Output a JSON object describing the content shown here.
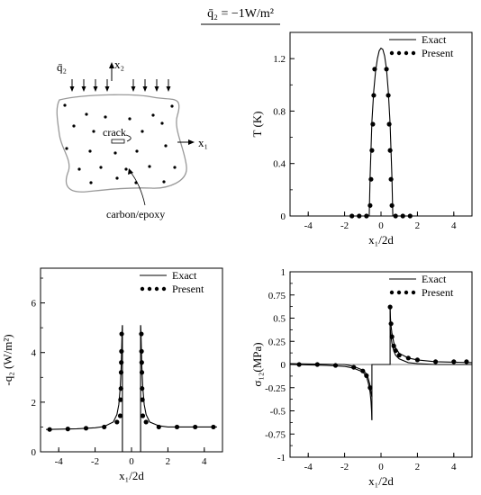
{
  "header": {
    "label": "q̄₂ = −1W/m²"
  },
  "schematic": {
    "q_label": "q̄₂",
    "x2_label": "x₂",
    "x1_label": "x₁",
    "crack_label": "crack",
    "material_label": "carbon/epoxy"
  },
  "chart_data": [
    {
      "type": "line",
      "xlabel": "x₁/2d",
      "ylabel": "T (K)",
      "xlim": [
        -5,
        5
      ],
      "ylim": [
        0,
        1.4
      ],
      "xticks": [
        -4,
        -2,
        0,
        2,
        4
      ],
      "yticks": [
        0,
        0.4,
        0.8,
        1.2
      ],
      "ytick_labels": [
        "0",
        "0.4",
        "0.8",
        "1.2"
      ],
      "legend": "top-right",
      "series": [
        {
          "name": "Exact",
          "style": "line",
          "x": [
            -0.65,
            -0.6,
            -0.5,
            -0.4,
            -0.3,
            -0.2,
            -0.1,
            0,
            0.1,
            0.2,
            0.3,
            0.4,
            0.5,
            0.6,
            0.65
          ],
          "y": [
            0,
            0.3,
            0.72,
            0.95,
            1.1,
            1.2,
            1.26,
            1.28,
            1.27,
            1.22,
            1.12,
            0.95,
            0.7,
            0.3,
            0
          ]
        },
        {
          "name": "Present",
          "style": "markers",
          "x": [
            -1.6,
            -1.2,
            -0.8,
            -0.6,
            -0.55,
            -0.5,
            -0.45,
            -0.4,
            -0.35,
            0.3,
            0.4,
            0.45,
            0.5,
            0.55,
            0.6,
            0.8,
            1.2,
            1.6
          ],
          "y": [
            0,
            0,
            0,
            0.08,
            0.28,
            0.5,
            0.7,
            0.92,
            1.12,
            1.12,
            0.92,
            0.7,
            0.5,
            0.28,
            0.08,
            0,
            0,
            0
          ]
        }
      ]
    },
    {
      "type": "line",
      "xlabel": "x₁/2d",
      "ylabel": "-q₂ (W/m²)",
      "xlim": [
        -5,
        5
      ],
      "ylim": [
        0,
        7.4
      ],
      "xticks": [
        -4,
        -2,
        0,
        2,
        4
      ],
      "yticks": [
        0,
        2,
        4,
        6
      ],
      "ytick_labels": [
        "0",
        "2",
        "4",
        "6"
      ],
      "legend": "top-right",
      "series": [
        {
          "name": "Exact",
          "style": "line",
          "segments": [
            {
              "x": [
                -4.7,
                -3,
                -2,
                -1.5,
                -1,
                -0.8,
                -0.7,
                -0.62,
                -0.57,
                -0.54,
                -0.52,
                -0.5
              ],
              "y": [
                0.9,
                0.93,
                0.97,
                1.02,
                1.2,
                1.5,
                1.9,
                2.6,
                3.4,
                4.2,
                4.8,
                5.1
              ]
            },
            {
              "x": [
                -0.5,
                -0.5,
                -0.5
              ],
              "y": [
                5.1,
                0,
                0
              ]
            },
            {
              "x": [
                0.5,
                0.5,
                0.5
              ],
              "y": [
                0,
                5.1,
                5.1
              ]
            },
            {
              "x": [
                0.5,
                0.52,
                0.54,
                0.57,
                0.62,
                0.7,
                0.8,
                1,
                1.5,
                2,
                3,
                4.7
              ],
              "y": [
                5.1,
                4.8,
                4.2,
                3.4,
                2.6,
                1.9,
                1.5,
                1.2,
                1.05,
                1.0,
                1.0,
                1.0
              ]
            }
          ]
        },
        {
          "name": "Present",
          "style": "markers",
          "x": [
            -4.5,
            -3.5,
            -2.5,
            -1.5,
            -0.8,
            -0.62,
            -0.6,
            -0.58,
            -0.57,
            -0.56,
            -0.55,
            -0.54,
            0.54,
            0.55,
            0.56,
            0.57,
            0.58,
            0.6,
            0.62,
            0.8,
            1.5,
            2.5,
            3.5,
            4.5
          ],
          "y": [
            0.9,
            0.92,
            0.95,
            1.0,
            1.2,
            1.45,
            2.1,
            2.55,
            3.2,
            3.6,
            4.05,
            4.75,
            4.75,
            4.05,
            3.6,
            3.2,
            2.55,
            2.1,
            1.45,
            1.2,
            1.0,
            1.0,
            1.0,
            1.0
          ]
        }
      ]
    },
    {
      "type": "line",
      "xlabel": "x₁/2d",
      "ylabel": "σ₁₂(MPa)",
      "xlim": [
        -5,
        5
      ],
      "ylim": [
        -1,
        1
      ],
      "xticks": [
        -4,
        -2,
        0,
        2,
        4
      ],
      "yticks": [
        -1,
        -0.75,
        -0.5,
        -0.25,
        0,
        0.25,
        0.5,
        0.75,
        1
      ],
      "ytick_labels": [
        "-1",
        "-0.75",
        "-0.5",
        "-0.25",
        "0",
        "0.25",
        "0.5",
        "0.75",
        "1"
      ],
      "legend": "top-right",
      "series": [
        {
          "name": "Exact",
          "style": "line",
          "segments": [
            {
              "x": [
                -5,
                -3,
                -2,
                -1.5,
                -1,
                -0.8,
                -0.7,
                -0.6,
                -0.55,
                -0.52,
                -0.5
              ],
              "y": [
                0,
                -0.01,
                -0.02,
                -0.04,
                -0.08,
                -0.13,
                -0.2,
                -0.3,
                -0.4,
                -0.5,
                -0.6
              ]
            },
            {
              "x": [
                -0.5,
                -0.5,
                0.5,
                0.5
              ],
              "y": [
                -0.6,
                0,
                0,
                0.6
              ]
            },
            {
              "x": [
                0.5,
                0.52,
                0.55,
                0.6,
                0.7,
                0.8,
                1,
                1.5,
                2,
                3,
                5
              ],
              "y": [
                0.6,
                0.5,
                0.42,
                0.34,
                0.24,
                0.18,
                0.12,
                0.07,
                0.05,
                0.03,
                0.02
              ]
            }
          ]
        },
        {
          "name": "",
          "style": "line",
          "x": [
            -5,
            -2,
            -1.5,
            -1,
            -0.8,
            -0.7,
            -0.6,
            -0.55,
            -0.5
          ],
          "y": [
            0.01,
            0.0,
            -0.02,
            -0.06,
            -0.1,
            -0.15,
            -0.23,
            -0.3,
            -0.35
          ]
        },
        {
          "name": "",
          "style": "line",
          "x": [
            0.5,
            0.55,
            0.6,
            0.7,
            0.8,
            1,
            1.5,
            2,
            3,
            5
          ],
          "y": [
            0.4,
            0.3,
            0.23,
            0.15,
            0.1,
            0.06,
            0.02,
            0.01,
            0.0,
            0.0
          ]
        },
        {
          "name": "Present",
          "style": "markers",
          "x": [
            -4.5,
            -3.5,
            -2.5,
            -1.5,
            -1,
            -0.8,
            -0.6,
            0.5,
            0.55,
            0.6,
            0.7,
            0.8,
            1,
            1.5,
            2,
            3,
            4,
            4.7
          ],
          "y": [
            0,
            0,
            -0.01,
            -0.03,
            -0.07,
            -0.12,
            -0.25,
            0.62,
            0.44,
            0.3,
            0.2,
            0.15,
            0.1,
            0.07,
            0.05,
            0.03,
            0.03,
            0.03
          ]
        }
      ]
    }
  ]
}
